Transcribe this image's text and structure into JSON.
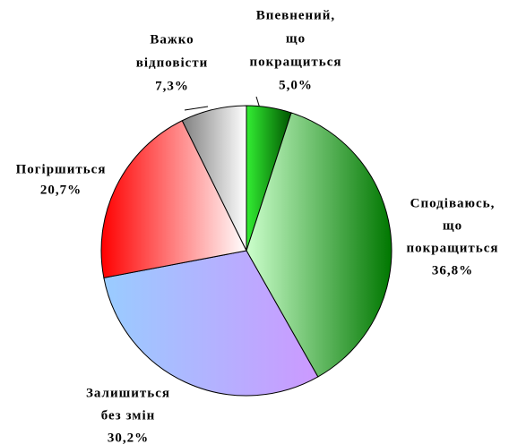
{
  "chart_data": {
    "type": "pie",
    "categories": [
      [
        "Впевнений,",
        "що",
        "покращиться"
      ],
      [
        "Сподіваюсь,",
        "що",
        "покращиться"
      ],
      [
        "Залишиться",
        "без змін"
      ],
      [
        "Погіршиться"
      ],
      [
        "Важко",
        "відповісти"
      ]
    ],
    "values": [
      5.0,
      36.8,
      30.2,
      20.7,
      7.3
    ],
    "value_labels": [
      "5,0%",
      "36,8%",
      "30,2%",
      "20,7%",
      "7,3%"
    ],
    "colors": [
      [
        "#33ee33",
        "#005500"
      ],
      [
        "#ccffcc",
        "#007700"
      ],
      [
        "#99ccff",
        "#cc99ff"
      ],
      [
        "#ff0000",
        "#ffffff"
      ],
      [
        "#808080",
        "#ffffff"
      ]
    ]
  }
}
